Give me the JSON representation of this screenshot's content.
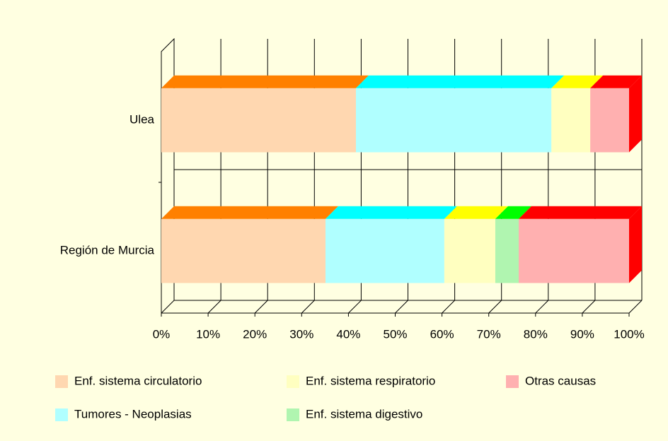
{
  "chart_data": {
    "type": "bar3d_stacked_horizontal",
    "categories": [
      "Ulea",
      "Región de Murcia"
    ],
    "series": [
      {
        "name": "Enf. sistema circulatorio",
        "color": "#ffd7b0",
        "top_color": "#ff8000",
        "values": [
          41.6,
          35.1
        ]
      },
      {
        "name": "Tumores - Neoplasias",
        "color": "#b0ffff",
        "top_color": "#00ffff",
        "values": [
          41.8,
          25.4
        ]
      },
      {
        "name": "Enf. sistema respiratorio",
        "color": "#ffffc0",
        "top_color": "#ffff00",
        "values": [
          8.3,
          10.9
        ]
      },
      {
        "name": "Enf. sistema digestivo",
        "color": "#b0f5b0",
        "top_color": "#00ff00",
        "values": [
          0,
          5.0
        ]
      },
      {
        "name": "Otras causas",
        "color": "#ffb0b0",
        "top_color": "#ff0000",
        "values": [
          8.3,
          23.6
        ]
      }
    ],
    "xlim": [
      0,
      100
    ],
    "xticks": [
      {
        "value": 0,
        "label": "0%"
      },
      {
        "value": 10,
        "label": "10%"
      },
      {
        "value": 20,
        "label": "20%"
      },
      {
        "value": 30,
        "label": "30%"
      },
      {
        "value": 40,
        "label": "40%"
      },
      {
        "value": 50,
        "label": "50%"
      },
      {
        "value": 60,
        "label": "60%"
      },
      {
        "value": 70,
        "label": "70%"
      },
      {
        "value": 80,
        "label": "80%"
      },
      {
        "value": 90,
        "label": "90%"
      },
      {
        "value": 100,
        "label": "100%"
      }
    ],
    "grid": true
  }
}
